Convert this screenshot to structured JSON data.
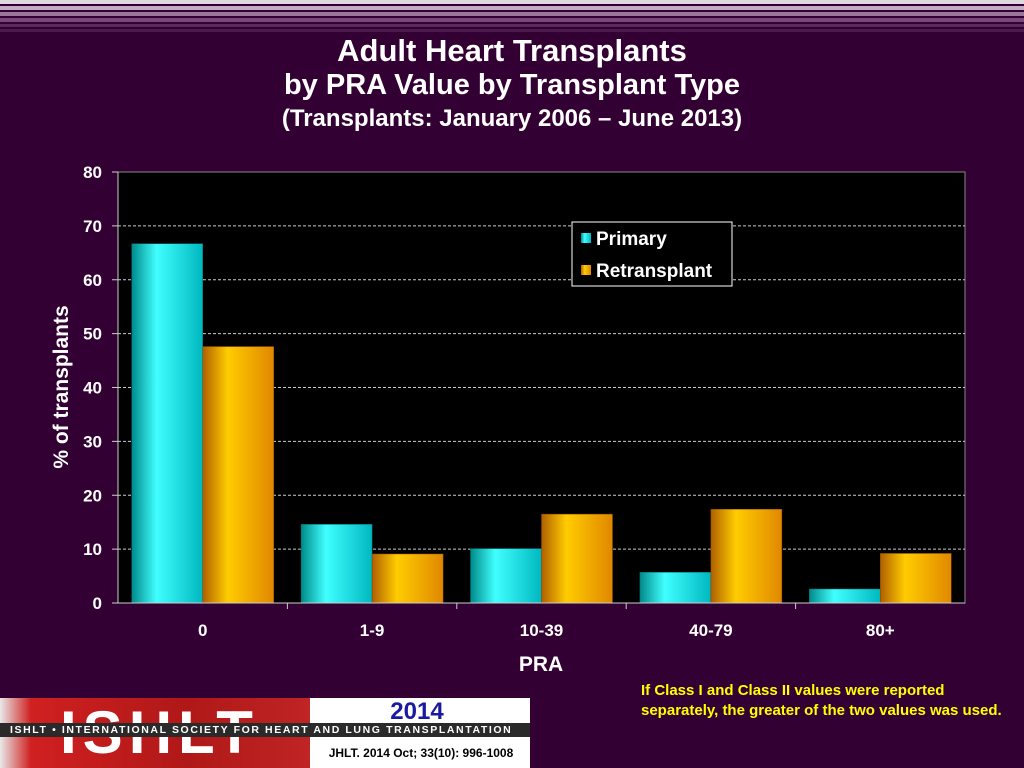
{
  "colors": {
    "background": "#330033",
    "plot_bg": "#000000",
    "primary": "#00e0e0",
    "retransplant": "#ffaa00",
    "footnote": "#ffff00"
  },
  "title": {
    "line1": "Adult Heart Transplants",
    "line2": "by PRA Value by Transplant Type",
    "line3": "(Transplants: January 2006 – June 2013)"
  },
  "chart_data": {
    "type": "bar",
    "categories": [
      "0",
      "1-9",
      "10-39",
      "40-79",
      "80+"
    ],
    "series": [
      {
        "name": "Primary",
        "values": [
          66.7,
          14.6,
          10.1,
          5.7,
          2.6
        ]
      },
      {
        "name": "Retransplant",
        "values": [
          47.6,
          9.1,
          16.5,
          17.4,
          9.2
        ]
      }
    ],
    "xlabel": "PRA",
    "ylabel": "% of transplants",
    "ylim": [
      0,
      80
    ],
    "yticks": [
      0,
      10,
      20,
      30,
      40,
      50,
      60,
      70,
      80
    ],
    "grid": true,
    "legend": "top-right"
  },
  "footnote": "If Class I and Class II values were reported separately, the greater of the two values was used.",
  "logo": {
    "letters": "ISHLT",
    "band": "ISHLT • INTERNATIONAL SOCIETY FOR HEART AND LUNG TRANSPLANTATION",
    "year": "2014",
    "citation": "JHLT. 2014 Oct; 33(10): 996-1008"
  }
}
